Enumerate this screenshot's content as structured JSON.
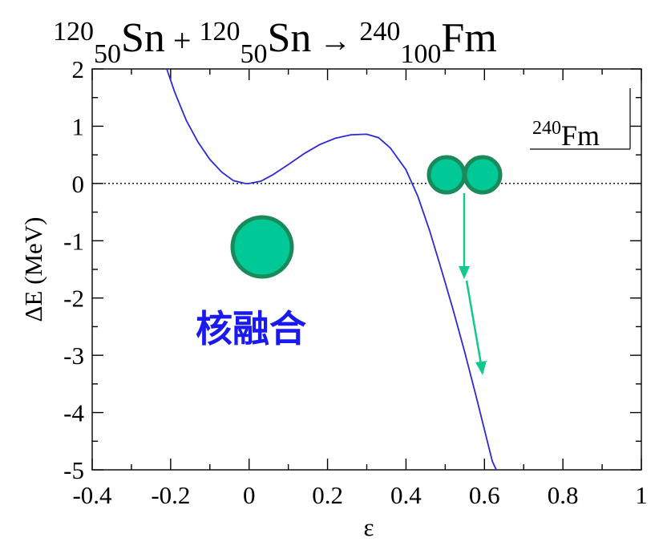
{
  "title": {
    "a1_mass": "120",
    "a1_z": "50",
    "a1_sym": "Sn",
    "plus": "+",
    "a2_mass": "120",
    "a2_z": "50",
    "a2_sym": "Sn",
    "arrow": "→",
    "p_mass": "240",
    "p_z": "100",
    "p_sym": "Fm"
  },
  "inset": {
    "mass": "240",
    "sym": "Fm"
  },
  "annotation": {
    "text": "核融合"
  },
  "colors": {
    "curve": "#2a2ad8",
    "nucleus_fill": "#00c896",
    "nucleus_stroke": "#1a8a5a",
    "arrow": "#10c890",
    "annotation": "#1a1af0"
  },
  "icons": [
    "fused-nucleus-icon",
    "two-nuclei-icon"
  ],
  "chart_data": {
    "type": "line",
    "xlabel": "ε",
    "ylabel": "ΔE  (MeV)",
    "xlim": [
      -0.4,
      1.0
    ],
    "ylim": [
      -5,
      2
    ],
    "xticks": [
      "-0.4",
      "-0.2",
      "0",
      "0.2",
      "0.4",
      "0.6",
      "0.8",
      "1"
    ],
    "yticks": [
      "2",
      "1",
      "0",
      "-1",
      "-2",
      "-3",
      "-4",
      "-5"
    ],
    "reference_line": {
      "y": 0,
      "style": "dotted"
    },
    "series": [
      {
        "x": [
          -0.21,
          -0.19,
          -0.16,
          -0.13,
          -0.1,
          -0.07,
          -0.04,
          -0.01,
          0.0,
          0.03,
          0.06,
          0.1,
          0.14,
          0.18,
          0.22,
          0.26,
          0.3,
          0.33,
          0.36,
          0.4,
          0.43,
          0.46,
          0.49,
          0.52,
          0.55,
          0.58,
          0.6,
          0.62,
          0.63
        ],
        "y": [
          2.0,
          1.6,
          1.1,
          0.72,
          0.42,
          0.2,
          0.05,
          0.0,
          0.0,
          0.04,
          0.15,
          0.33,
          0.52,
          0.68,
          0.79,
          0.85,
          0.86,
          0.8,
          0.62,
          0.24,
          -0.22,
          -0.82,
          -1.5,
          -2.2,
          -2.95,
          -3.75,
          -4.3,
          -4.85,
          -5.0
        ]
      }
    ]
  }
}
